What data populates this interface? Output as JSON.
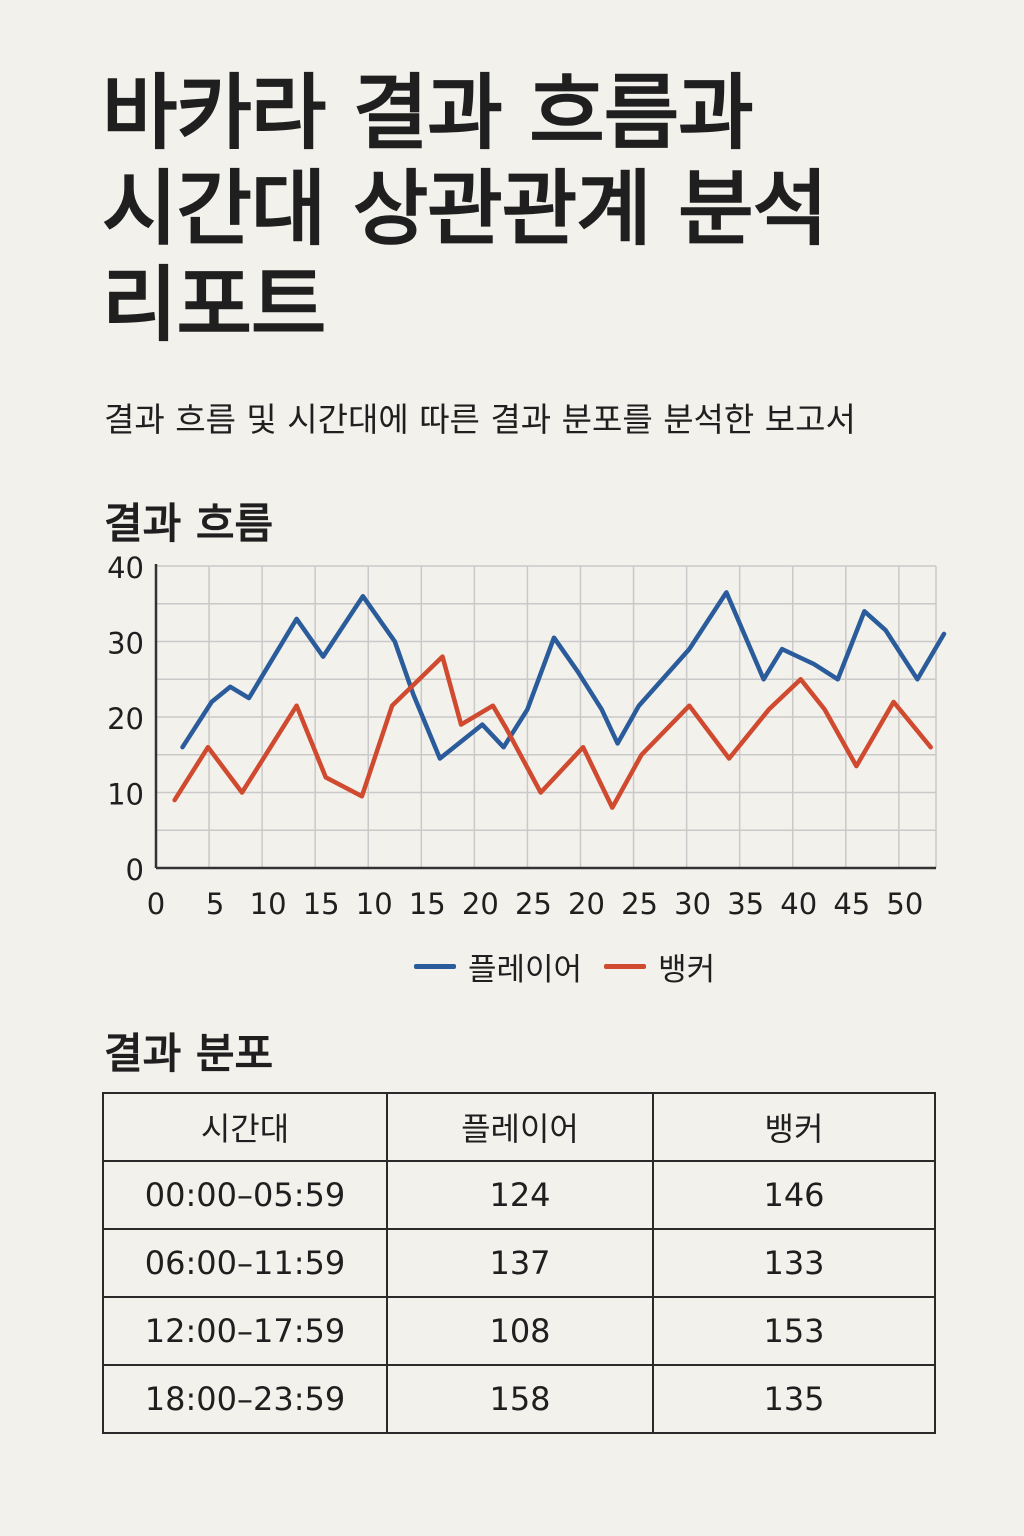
{
  "title_lines": [
    "바카라 결과 흐름과",
    "시간대 상관관계 분석",
    "리포트"
  ],
  "subtitle": "결과 흐름 및 시간대에 따른 결과 분포를 분석한 보고서",
  "flow_section_title": "결과 흐름",
  "distribution_section_title": "결과 분포",
  "colors": {
    "player": "#2a5b9a",
    "banker": "#cf4a2f",
    "grid": "#c9c9c9",
    "axis": "#333333"
  },
  "chart_data": {
    "type": "line",
    "title": "결과 흐름",
    "xlabel": "",
    "ylabel": "",
    "ylim": [
      0,
      40
    ],
    "yticks": [
      "0",
      "10",
      "20",
      "30",
      "40"
    ],
    "xticks": [
      "0",
      "5",
      "10",
      "15",
      "10",
      "15",
      "20",
      "25",
      "20",
      "25",
      "30",
      "35",
      "40",
      "45",
      "50"
    ],
    "grid": true,
    "legend_position": "bottom-center",
    "x": [
      0.4,
      0.9,
      1.2,
      1.5,
      1.8,
      2.2,
      2.6,
      3.1,
      3.6,
      4.0,
      4.5,
      5.0,
      5.5,
      6.0,
      6.5,
      6.9,
      7.3,
      7.8,
      8.3,
      8.6,
      9.0,
      9.5,
      10.0,
      10.5,
      11.0,
      11.4,
      11.9,
      12.4,
      12.9,
      13.2,
      13.7
    ],
    "series": [
      {
        "name": "플레이어",
        "values": [
          16,
          22,
          24,
          22.5,
          33,
          28,
          36,
          30,
          23,
          14.5,
          19,
          16,
          21,
          30.5,
          26,
          21,
          16.5,
          21.5,
          29,
          36.5,
          25,
          29,
          27,
          25,
          34,
          31.5,
          25,
          31,
          null,
          null,
          null
        ]
      },
      {
        "name": "뱅커",
        "values": [
          9,
          16,
          10,
          21.5,
          12,
          9.5,
          21.5,
          28,
          19,
          21.5,
          18.5,
          10,
          16,
          8,
          15,
          21.5,
          14.5,
          21,
          25,
          21,
          13.5,
          22,
          16,
          null,
          null,
          null,
          null,
          null,
          null,
          null,
          null
        ]
      }
    ],
    "series_x": [
      [
        0.5,
        1.05,
        1.4,
        1.75,
        2.65,
        3.15,
        3.9,
        4.5,
        4.85,
        5.35,
        6.15,
        6.55,
        7.0,
        7.5,
        7.95,
        8.4,
        8.7,
        9.1,
        10.05,
        10.75,
        11.45,
        11.8,
        12.4,
        12.85,
        13.35,
        13.75,
        14.35,
        14.85
      ],
      [
        0.35,
        0.98,
        1.62,
        2.65,
        3.2,
        3.88,
        4.45,
        5.4,
        5.75,
        6.35,
        6.6,
        7.25,
        8.05,
        8.6,
        9.15,
        10.05,
        10.8,
        11.55,
        12.15,
        12.6,
        13.2,
        13.9,
        14.6
      ]
    ]
  },
  "legend": {
    "player_label": "플레이어",
    "banker_label": "뱅커"
  },
  "table": {
    "headers": [
      "시간대",
      "플레이어",
      "뱅커"
    ],
    "rows": [
      [
        "00:00–05:59",
        "124",
        "146"
      ],
      [
        "06:00–11:59",
        "137",
        "133"
      ],
      [
        "12:00–17:59",
        "108",
        "153"
      ],
      [
        "18:00–23:59",
        "158",
        "135"
      ]
    ]
  }
}
